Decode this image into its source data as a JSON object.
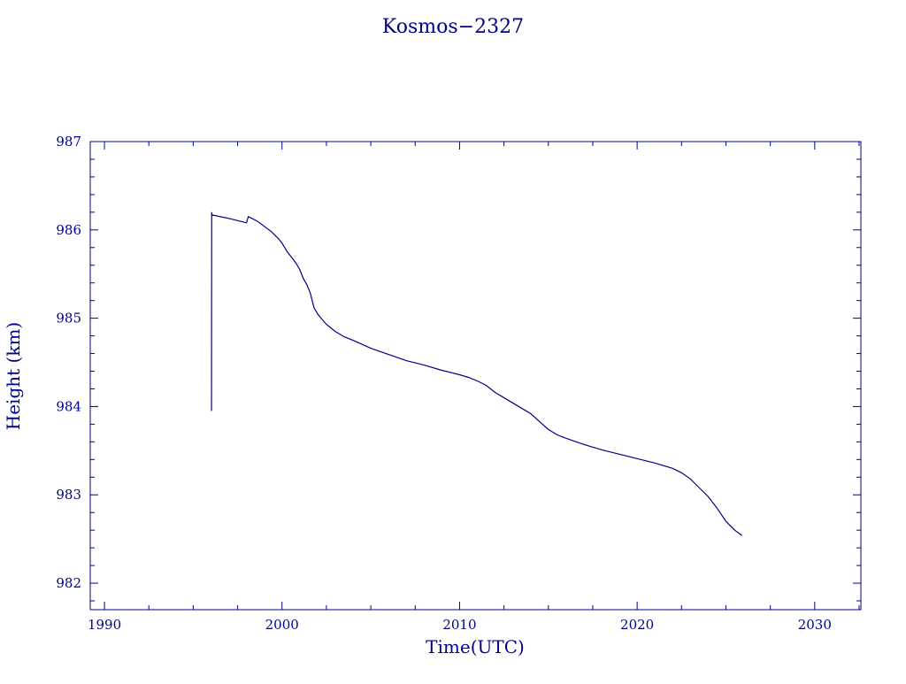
{
  "colors": {
    "ink": "#00008b",
    "background": "#ffffff"
  },
  "chart_data": {
    "type": "line",
    "title": "Kosmos−2327",
    "xlabel": "Time(UTC)",
    "ylabel": "Height (km)",
    "xlim": [
      1989.2,
      2032.6
    ],
    "ylim": [
      981.7,
      987.0
    ],
    "x_ticks": [
      "1990",
      "2000",
      "2010",
      "2020",
      "2030"
    ],
    "y_ticks": [
      "982",
      "983",
      "984",
      "985",
      "986",
      "987"
    ],
    "grid": false,
    "legend": "none",
    "series": [
      {
        "x": [
          1996.03,
          1996.04,
          1996.05,
          1997.0,
          1998.0,
          1998.1,
          1998.3,
          1998.6,
          1999.0,
          1999.4,
          1999.8,
          2000.0,
          2000.3,
          2000.5,
          2000.8,
          2001.0,
          2001.2,
          2001.4,
          2001.6,
          2001.8,
          2002.0,
          2002.2,
          2002.5,
          2003.0,
          2003.5,
          2004.0,
          2005.0,
          2006.0,
          2007.0,
          2008.0,
          2009.0,
          2010.0,
          2010.5,
          2011.0,
          2011.5,
          2012.0,
          2012.5,
          2013.0,
          2013.5,
          2014.0,
          2014.5,
          2015.0,
          2015.5,
          2016.0,
          2017.0,
          2018.0,
          2019.0,
          2020.0,
          2021.0,
          2022.0,
          2022.5,
          2023.0,
          2023.5,
          2024.0,
          2024.5,
          2025.0,
          2025.5,
          2025.9
        ],
        "y": [
          983.95,
          986.2,
          986.17,
          986.13,
          986.08,
          986.15,
          986.13,
          986.1,
          986.04,
          985.98,
          985.9,
          985.85,
          985.75,
          985.7,
          985.62,
          985.55,
          985.45,
          985.38,
          985.28,
          985.12,
          985.05,
          985.0,
          984.93,
          984.85,
          984.79,
          984.75,
          984.66,
          984.59,
          984.52,
          984.47,
          984.41,
          984.36,
          984.33,
          984.29,
          984.24,
          984.16,
          984.1,
          984.04,
          983.98,
          983.92,
          983.83,
          983.74,
          983.68,
          983.64,
          983.57,
          983.51,
          983.46,
          983.41,
          983.36,
          983.3,
          983.25,
          983.18,
          983.08,
          982.98,
          982.85,
          982.7,
          982.6,
          982.54
        ]
      }
    ]
  }
}
